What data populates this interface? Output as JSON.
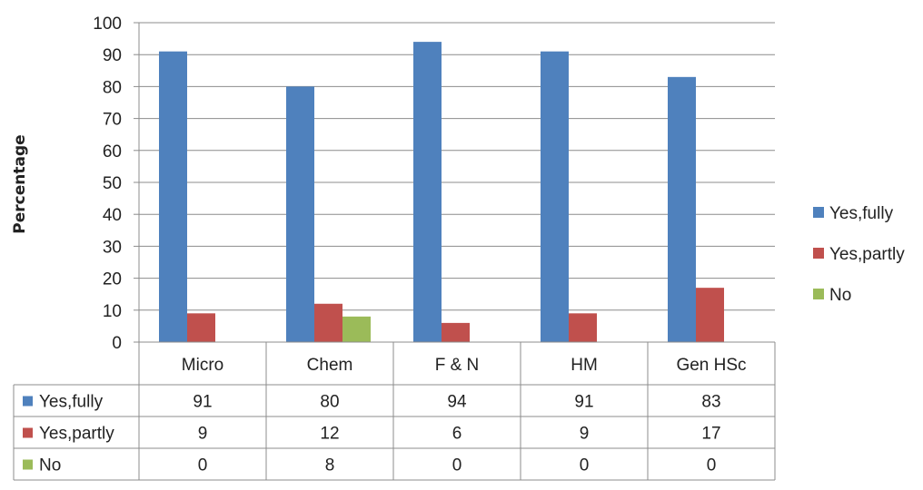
{
  "chart_data": {
    "type": "bar",
    "title": "",
    "xlabel": "",
    "ylabel": "Percentage",
    "ylim": [
      0,
      100
    ],
    "yticks": [
      0,
      10,
      20,
      30,
      40,
      50,
      60,
      70,
      80,
      90,
      100
    ],
    "categories": [
      "Micro",
      "Chem",
      "F & N",
      "HM",
      "Gen HSc"
    ],
    "series": [
      {
        "name": "Yes,fully",
        "color": "#4f81bd",
        "values": [
          91,
          80,
          94,
          91,
          83
        ]
      },
      {
        "name": "Yes,partly",
        "color": "#c0504d",
        "values": [
          9,
          12,
          6,
          9,
          17
        ]
      },
      {
        "name": "No",
        "color": "#9bbb59",
        "values": [
          0,
          8,
          0,
          0,
          0
        ]
      }
    ],
    "grid": true,
    "legend_position": "right",
    "data_table": true
  }
}
